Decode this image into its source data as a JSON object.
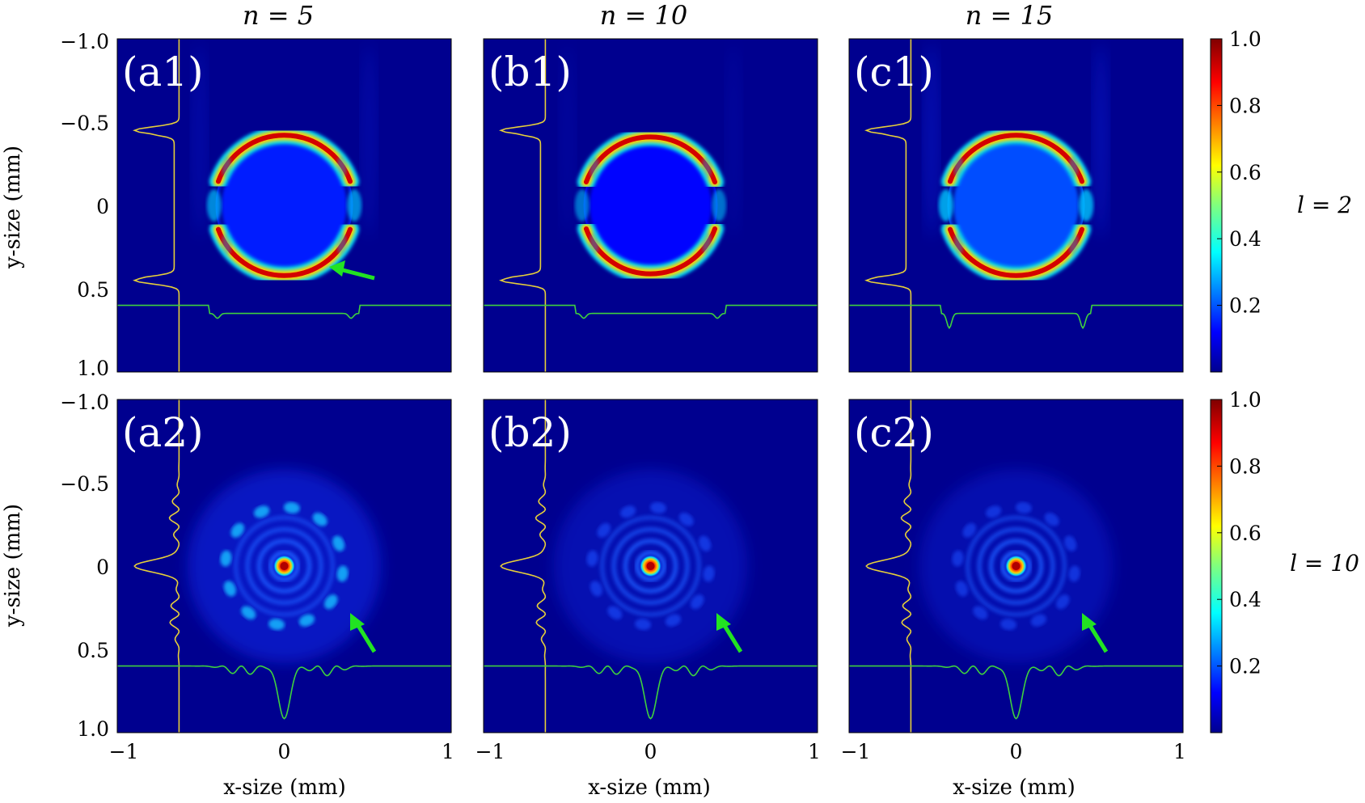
{
  "figure": {
    "column_titles": [
      "n = 5",
      "n = 10",
      "n = 15"
    ],
    "row_labels": [
      "l = 2",
      "l = 10"
    ],
    "x_axis_label": "x-size (mm)",
    "y_axis_label": "y-size (mm)",
    "panel_labels": [
      [
        "(a1)",
        "(b1)",
        "(c1)"
      ],
      [
        "(a2)",
        "(b2)",
        "(c2)"
      ]
    ],
    "x_ticks": [
      "−1",
      "0",
      "1"
    ],
    "y_ticks": [
      "−1.0",
      "−0.5",
      "0",
      "0.5",
      "1.0"
    ],
    "colorbar_ticks": [
      "1.0",
      "0.8",
      "0.6",
      "0.4",
      "0.2"
    ]
  },
  "chart_data": {
    "type": "heatmap",
    "colormap": "jet",
    "xlim": [
      -1,
      1
    ],
    "ylim": [
      1.0,
      -1.0
    ],
    "x_ticks": [
      -1,
      0,
      1
    ],
    "y_ticks": [
      -1.0,
      -0.5,
      0,
      0.5,
      1.0
    ],
    "colorbar_range": [
      0,
      1.0
    ],
    "colorbar_ticks": [
      0.2,
      0.4,
      0.6,
      0.8,
      1.0
    ],
    "rows": [
      {
        "l": 2,
        "pattern": "ring",
        "panels": [
          {
            "label": "(a1)",
            "n": 5,
            "ring_radius": 0.42,
            "ring_peak": 1.0,
            "core_level": 0.12,
            "side_lobes": 0.35
          },
          {
            "label": "(b1)",
            "n": 10,
            "ring_radius": 0.41,
            "ring_peak": 1.0,
            "core_level": 0.08,
            "side_lobes": 0.2
          },
          {
            "label": "(c1)",
            "n": 15,
            "ring_radius": 0.42,
            "ring_peak": 1.0,
            "core_level": 0.2,
            "side_lobes": 0.5
          }
        ]
      },
      {
        "l": 10,
        "pattern": "central-peak-rings",
        "panels": [
          {
            "label": "(a2)",
            "n": 5,
            "peak_value": 1.0,
            "outer_spots": 12,
            "outer_ring_radius": 0.4,
            "outer_level": 0.35
          },
          {
            "label": "(b2)",
            "n": 10,
            "peak_value": 1.0,
            "outer_spots": 12,
            "outer_ring_radius": 0.4,
            "outer_level": 0.12
          },
          {
            "label": "(c2)",
            "n": 15,
            "peak_value": 1.0,
            "outer_spots": 12,
            "outer_ring_radius": 0.4,
            "outer_level": 0.08
          }
        ]
      }
    ],
    "overlays": {
      "vertical_profile_x": -0.63,
      "horizontal_profile_y": 0.6,
      "vertical_profile_color": "#e6cf3a",
      "horizontal_profile_color": "#3ed13e",
      "arrow_color": "#22e322"
    }
  }
}
